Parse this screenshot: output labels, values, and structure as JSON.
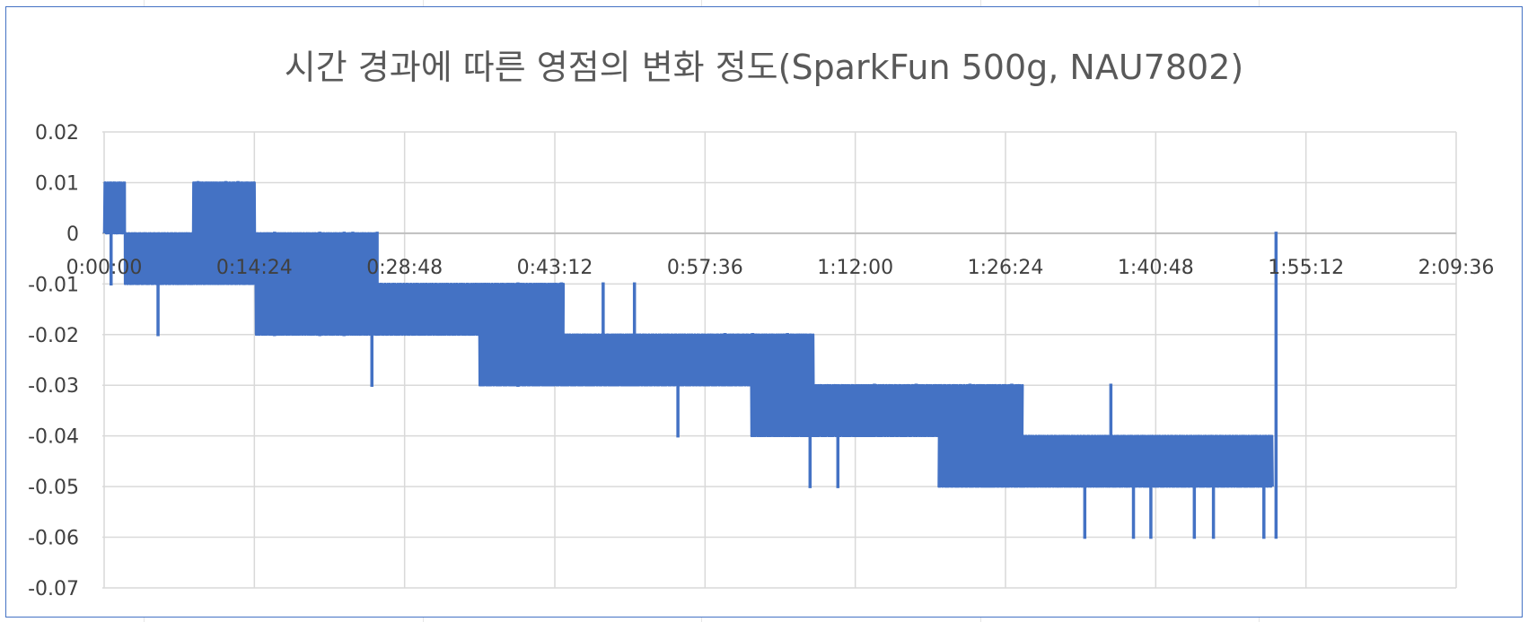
{
  "chart_data": {
    "type": "line",
    "title": "시간 경과에 따른 영점의 변화 정도(SparkFun 500g, NAU7802)",
    "xlabel": "",
    "ylabel": "",
    "x_ticks": [
      "0:00:00",
      "0:14:24",
      "0:28:48",
      "0:43:12",
      "0:57:36",
      "1:12:00",
      "1:26:24",
      "1:40:48",
      "1:55:12",
      "2:09:36"
    ],
    "x_unit": "h:mm:ss",
    "xlim": [
      "0:00:00",
      "2:09:36"
    ],
    "y_ticks": [
      "0.02",
      "0.01",
      "0",
      "-0.01",
      "-0.02",
      "-0.03",
      "-0.04",
      "-0.05",
      "-0.06",
      "-0.07"
    ],
    "ylim": [
      -0.07,
      0.02
    ],
    "grid": true,
    "legend": "none",
    "series": [
      {
        "color": "#4472c4",
        "segments": [
          {
            "from": "0:00:00",
            "to": "0:02:00",
            "low": 0.0,
            "high": 0.01
          },
          {
            "from": "0:02:00",
            "to": "0:08:30",
            "low": -0.01,
            "high": 0.0
          },
          {
            "from": "0:08:30",
            "to": "0:14:30",
            "low": -0.01,
            "high": 0.01
          },
          {
            "from": "0:14:30",
            "to": "0:26:00",
            "low": -0.02,
            "high": 0.0
          },
          {
            "from": "0:26:00",
            "to": "0:36:00",
            "low": -0.02,
            "high": -0.01
          },
          {
            "from": "0:36:00",
            "to": "0:44:00",
            "low": -0.03,
            "high": -0.01
          },
          {
            "from": "0:44:00",
            "to": "1:02:00",
            "low": -0.03,
            "high": -0.02
          },
          {
            "from": "1:02:00",
            "to": "1:08:00",
            "low": -0.04,
            "high": -0.02
          },
          {
            "from": "1:08:00",
            "to": "1:20:00",
            "low": -0.04,
            "high": -0.03
          },
          {
            "from": "1:20:00",
            "to": "1:28:00",
            "low": -0.05,
            "high": -0.03
          },
          {
            "from": "1:28:00",
            "to": "1:52:00",
            "low": -0.05,
            "high": -0.04
          }
        ],
        "spikes": [
          {
            "x": "0:00:40",
            "y": -0.01
          },
          {
            "x": "0:05:10",
            "y": -0.02
          },
          {
            "x": "0:09:00",
            "y": 0.01
          },
          {
            "x": "0:11:40",
            "y": 0.01
          },
          {
            "x": "0:12:50",
            "y": 0.01
          },
          {
            "x": "0:16:20",
            "y": -0.02
          },
          {
            "x": "0:20:40",
            "y": -0.02
          },
          {
            "x": "0:23:00",
            "y": -0.02
          },
          {
            "x": "0:25:40",
            "y": -0.03
          },
          {
            "x": "0:23:50",
            "y": 0.0
          },
          {
            "x": "0:26:10",
            "y": 0.0
          },
          {
            "x": "0:39:40",
            "y": -0.03
          },
          {
            "x": "0:43:50",
            "y": -0.01
          },
          {
            "x": "0:47:50",
            "y": -0.01
          },
          {
            "x": "0:50:50",
            "y": -0.01
          },
          {
            "x": "0:55:00",
            "y": -0.04
          },
          {
            "x": "0:59:30",
            "y": -0.02
          },
          {
            "x": "1:02:10",
            "y": -0.02
          },
          {
            "x": "1:05:30",
            "y": -0.02
          },
          {
            "x": "1:07:40",
            "y": -0.05
          },
          {
            "x": "1:10:20",
            "y": -0.05
          },
          {
            "x": "1:13:50",
            "y": -0.03
          },
          {
            "x": "1:17:50",
            "y": -0.03
          },
          {
            "x": "1:23:00",
            "y": -0.03
          },
          {
            "x": "1:27:00",
            "y": -0.03
          },
          {
            "x": "1:34:00",
            "y": -0.06
          },
          {
            "x": "1:36:30",
            "y": -0.03
          },
          {
            "x": "1:38:40",
            "y": -0.06
          },
          {
            "x": "1:40:20",
            "y": -0.06
          },
          {
            "x": "1:44:30",
            "y": -0.06
          },
          {
            "x": "1:46:20",
            "y": -0.06
          },
          {
            "x": "1:51:10",
            "y": -0.06
          },
          {
            "x": "1:52:20",
            "y": -0.06
          }
        ]
      }
    ]
  }
}
